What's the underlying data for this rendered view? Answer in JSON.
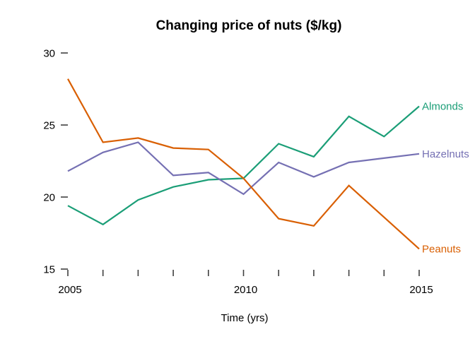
{
  "chart_data": {
    "type": "line",
    "title": "Changing price of nuts ($/kg)",
    "xlabel": "Time (yrs)",
    "ylabel": "",
    "x": [
      2005,
      2006,
      2007,
      2008,
      2009,
      2010,
      2011,
      2012,
      2013,
      2014,
      2015
    ],
    "xlim": [
      2005,
      2015
    ],
    "ylim": [
      15,
      30
    ],
    "yticks": [
      15,
      20,
      25,
      30
    ],
    "xticks": [
      2005,
      2006,
      2007,
      2008,
      2009,
      2010,
      2011,
      2012,
      2013,
      2014,
      2015
    ],
    "xtick_labels": [
      2005,
      2010,
      2015
    ],
    "grid": false,
    "legend_position": "direct-labels-right-of-line-ends",
    "background_color": "#ffffff",
    "tick_color": "#404040",
    "series": [
      {
        "name": "Almonds",
        "color": "#1B9E77",
        "values": [
          19.4,
          18.1,
          19.8,
          20.7,
          21.2,
          21.3,
          23.7,
          22.8,
          25.6,
          24.2,
          26.3
        ]
      },
      {
        "name": "Hazelnuts",
        "color": "#7570B3",
        "values": [
          21.8,
          23.1,
          23.8,
          21.5,
          21.7,
          20.2,
          22.4,
          21.4,
          22.4,
          22.7,
          23.0
        ]
      },
      {
        "name": "Peanuts",
        "color": "#D95F02",
        "values": [
          28.2,
          23.8,
          24.1,
          23.4,
          23.3,
          21.3,
          18.5,
          18.0,
          20.8,
          18.6,
          16.4
        ]
      }
    ]
  }
}
